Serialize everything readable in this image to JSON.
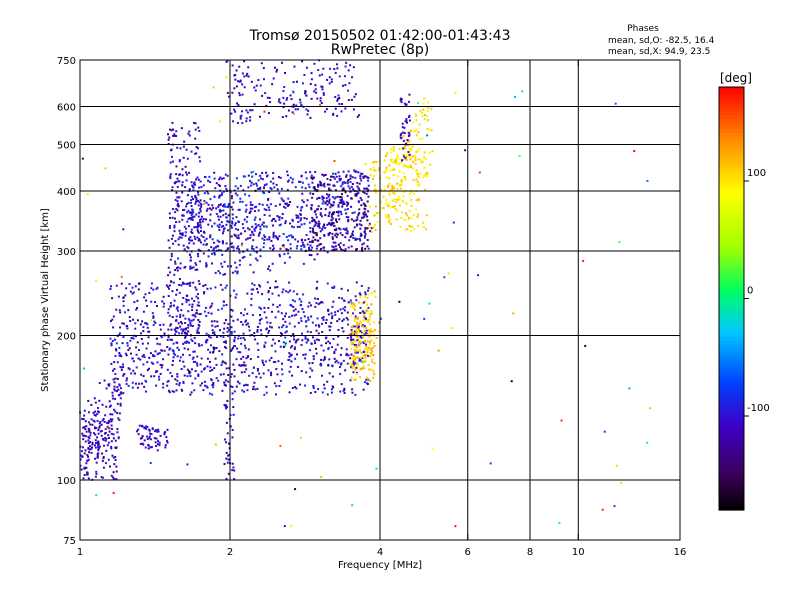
{
  "chart_data": {
    "type": "scatter",
    "title": "Tromsø 20150502 01:42:00-01:43:43",
    "subtitle": "RwPretec (8p)",
    "xlabel": "Frequency [MHz]",
    "ylabel": "Stationary phase Virtual Height [km]",
    "x_scale": "log",
    "y_scale": "log",
    "xlim": [
      1,
      16
    ],
    "ylim": [
      75,
      750
    ],
    "x_ticks": [
      1,
      2,
      4,
      6,
      8,
      10,
      16
    ],
    "y_ticks": [
      75,
      100,
      200,
      300,
      400,
      500,
      600,
      750
    ],
    "x_grid": [
      2,
      4,
      6,
      8,
      10
    ],
    "y_grid": [
      100,
      200,
      300,
      400,
      500,
      600
    ],
    "grid": true,
    "stats": {
      "header": "Phases",
      "line1": "mean, sd,O:  -82.5, 16.4",
      "line2": "mean, sd,X:  94.9, 23.5"
    },
    "colorbar": {
      "label": "[deg]",
      "range": [
        -180,
        180
      ],
      "ticks": [
        100,
        0,
        -100
      ],
      "colormap": "rainbow (black-purple-blue-cyan-green-yellow-orange-red)"
    },
    "series": [
      {
        "traces": [
          {
            "x": [
              1.0,
              1.05,
              1.1,
              1.15,
              1.2
            ],
            "y": [
              105,
              115,
              125,
              130,
              135
            ],
            "phase": -110
          },
          {
            "x": [
              1.2,
              1.35,
              1.5,
              1.65,
              1.8,
              1.95,
              2.1,
              2.3,
              2.6,
              2.9,
              3.2,
              3.5,
              3.8
            ],
            "y": [
              175,
              170,
              168,
              170,
              172,
              175,
              180,
              182,
              185,
              188,
              190,
              192,
              195
            ],
            "phase": -105
          },
          {
            "x": [
              1.6,
              1.7,
              1.8,
              1.9,
              2.0,
              2.1,
              2.3,
              2.6,
              2.9,
              3.2,
              3.5,
              3.8
            ],
            "y": [
              310,
              305,
              300,
              298,
              297,
              298,
              300,
              305,
              315,
              330,
              345,
              360
            ],
            "phase": -100
          },
          {
            "x": [
              3.8,
              4.0,
              4.2,
              4.4,
              4.6,
              4.8,
              5.0
            ],
            "y": [
              360,
              365,
              380,
              400,
              430,
              460,
              500
            ],
            "phase": 100
          },
          {
            "x": [
              2.0,
              2.1,
              2.2,
              2.5,
              2.7,
              2.9,
              3.1,
              3.3,
              3.6
            ],
            "y": [
              610,
              615,
              612,
              625,
              628,
              630,
              632,
              630,
              634
            ],
            "phase": -110
          },
          {
            "x": [
              3.5,
              3.6,
              3.7,
              3.8,
              3.9
            ],
            "y": [
              180,
              185,
              190,
              195,
              200
            ],
            "phase": 110
          }
        ]
      }
    ]
  }
}
